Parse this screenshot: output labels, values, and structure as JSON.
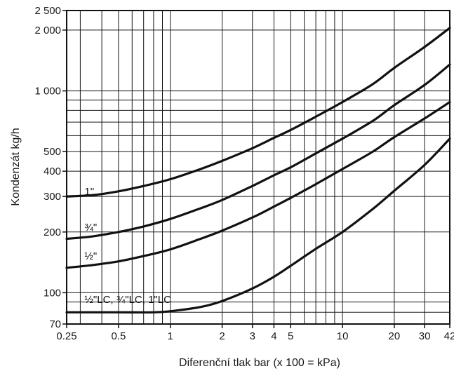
{
  "chart_data": {
    "type": "line",
    "xlabel": "Diferenční tlak bar (x 100 = kPa)",
    "ylabel": "Kondenzát kg/h",
    "xscale": "log",
    "yscale": "log",
    "xlim": [
      0.25,
      42
    ],
    "ylim": [
      70,
      2500
    ],
    "grid": true,
    "x_ticks": [
      {
        "value": 0.25,
        "label": "0.25"
      },
      {
        "value": 0.5,
        "label": "0.5"
      },
      {
        "value": 1,
        "label": "1"
      },
      {
        "value": 2,
        "label": "2"
      },
      {
        "value": 3,
        "label": "3"
      },
      {
        "value": 4,
        "label": "4"
      },
      {
        "value": 5,
        "label": "5"
      },
      {
        "value": 10,
        "label": "10"
      },
      {
        "value": 20,
        "label": "20"
      },
      {
        "value": 30,
        "label": "30"
      },
      {
        "value": 42,
        "label": "42"
      }
    ],
    "y_ticks": [
      {
        "value": 70,
        "label": "70"
      },
      {
        "value": 100,
        "label": "100"
      },
      {
        "value": 200,
        "label": "200"
      },
      {
        "value": 300,
        "label": "300"
      },
      {
        "value": 400,
        "label": "400"
      },
      {
        "value": 500,
        "label": "500"
      },
      {
        "value": 1000,
        "label": "1 000"
      },
      {
        "value": 2000,
        "label": "2 000"
      },
      {
        "value": 2500,
        "label": "2 500"
      }
    ],
    "x_grid": [
      0.3,
      0.4,
      0.5,
      0.6,
      0.7,
      0.8,
      0.9,
      1,
      2,
      3,
      4,
      5,
      6,
      7,
      8,
      9,
      10,
      20,
      30,
      42
    ],
    "y_grid": [
      70,
      80,
      90,
      100,
      200,
      300,
      400,
      500,
      600,
      700,
      800,
      900,
      1000,
      2000,
      2500
    ],
    "series": [
      {
        "name": "1\"",
        "label_at": [
          0.3,
          305
        ],
        "points": [
          [
            0.25,
            300
          ],
          [
            0.35,
            304
          ],
          [
            0.5,
            318
          ],
          [
            0.7,
            338
          ],
          [
            1,
            365
          ],
          [
            1.5,
            410
          ],
          [
            2,
            450
          ],
          [
            3,
            520
          ],
          [
            4,
            585
          ],
          [
            5,
            640
          ],
          [
            7,
            745
          ],
          [
            10,
            880
          ],
          [
            15,
            1080
          ],
          [
            20,
            1300
          ],
          [
            30,
            1650
          ],
          [
            42,
            2050
          ]
        ]
      },
      {
        "name": "¾\"",
        "label_at": [
          0.3,
          203
        ],
        "points": [
          [
            0.25,
            185
          ],
          [
            0.35,
            190
          ],
          [
            0.5,
            200
          ],
          [
            0.7,
            213
          ],
          [
            1,
            232
          ],
          [
            1.5,
            262
          ],
          [
            2,
            288
          ],
          [
            3,
            338
          ],
          [
            4,
            382
          ],
          [
            5,
            418
          ],
          [
            7,
            490
          ],
          [
            10,
            580
          ],
          [
            15,
            710
          ],
          [
            20,
            850
          ],
          [
            30,
            1070
          ],
          [
            42,
            1350
          ]
        ]
      },
      {
        "name": "½\"",
        "label_at": [
          0.3,
          146
        ],
        "points": [
          [
            0.25,
            133
          ],
          [
            0.35,
            137
          ],
          [
            0.5,
            143
          ],
          [
            0.7,
            152
          ],
          [
            1,
            164
          ],
          [
            1.5,
            185
          ],
          [
            2,
            203
          ],
          [
            3,
            236
          ],
          [
            4,
            267
          ],
          [
            5,
            295
          ],
          [
            7,
            345
          ],
          [
            10,
            410
          ],
          [
            15,
            500
          ],
          [
            20,
            590
          ],
          [
            30,
            730
          ],
          [
            42,
            880
          ]
        ]
      },
      {
        "name": "½\"LC, ¾\"LC, 1\"LC",
        "label_at": [
          0.3,
          89
        ],
        "points": [
          [
            0.25,
            80
          ],
          [
            0.5,
            80
          ],
          [
            0.8,
            80
          ],
          [
            1,
            81
          ],
          [
            1.5,
            85
          ],
          [
            2,
            91
          ],
          [
            3,
            105
          ],
          [
            4,
            120
          ],
          [
            5,
            136
          ],
          [
            7,
            165
          ],
          [
            10,
            200
          ],
          [
            15,
            260
          ],
          [
            20,
            320
          ],
          [
            30,
            430
          ],
          [
            42,
            580
          ]
        ]
      }
    ]
  }
}
